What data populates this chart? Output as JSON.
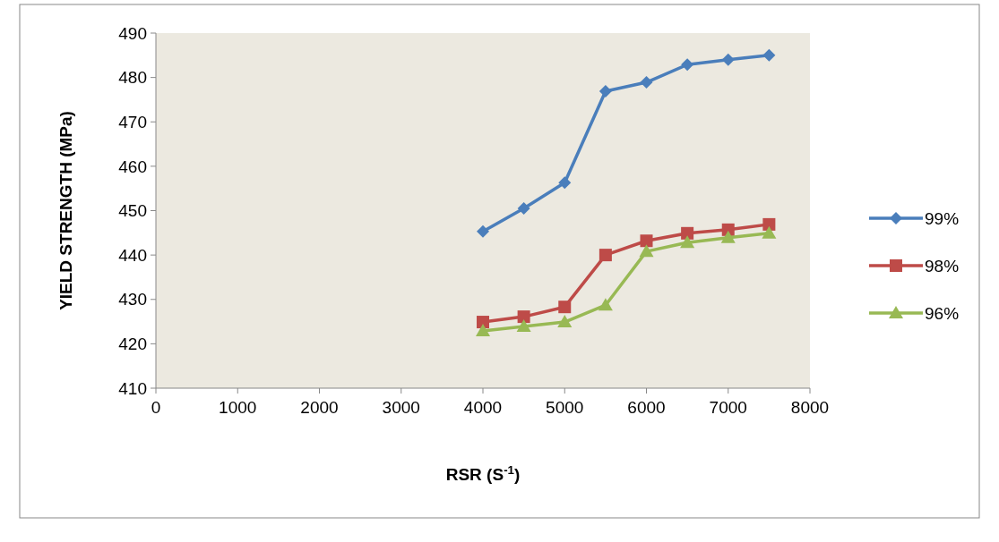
{
  "chart_data": {
    "type": "line",
    "xlabel": "RSR (S$^{-1}$)",
    "ylabel": "YIELD STRENGTH (MPa)",
    "x": [
      4000,
      4500,
      5000,
      5500,
      6000,
      6500,
      7000,
      7500
    ],
    "series": [
      {
        "name": "99%",
        "color": "#4a7ebb",
        "marker": "diamond",
        "values": [
          445.3,
          450.5,
          456.3,
          476.9,
          478.9,
          482.9,
          484,
          485
        ]
      },
      {
        "name": "98%",
        "color": "#be4b48",
        "marker": "square",
        "values": [
          424.9,
          426.1,
          428.3,
          440,
          443.2,
          444.9,
          445.7,
          446.9
        ]
      },
      {
        "name": "96%",
        "color": "#98b954",
        "marker": "triangle",
        "values": [
          422.9,
          423.9,
          424.9,
          428.7,
          440.8,
          442.8,
          443.9,
          444.9
        ]
      }
    ],
    "xlim": [
      0,
      8000
    ],
    "xticks": [
      0,
      1000,
      2000,
      3000,
      4000,
      5000,
      6000,
      7000,
      8000
    ],
    "ylim": [
      410,
      490
    ],
    "yticks": [
      410,
      420,
      430,
      440,
      450,
      460,
      470,
      480,
      490
    ],
    "grid": false,
    "legend": "right",
    "line_style": "solid"
  }
}
